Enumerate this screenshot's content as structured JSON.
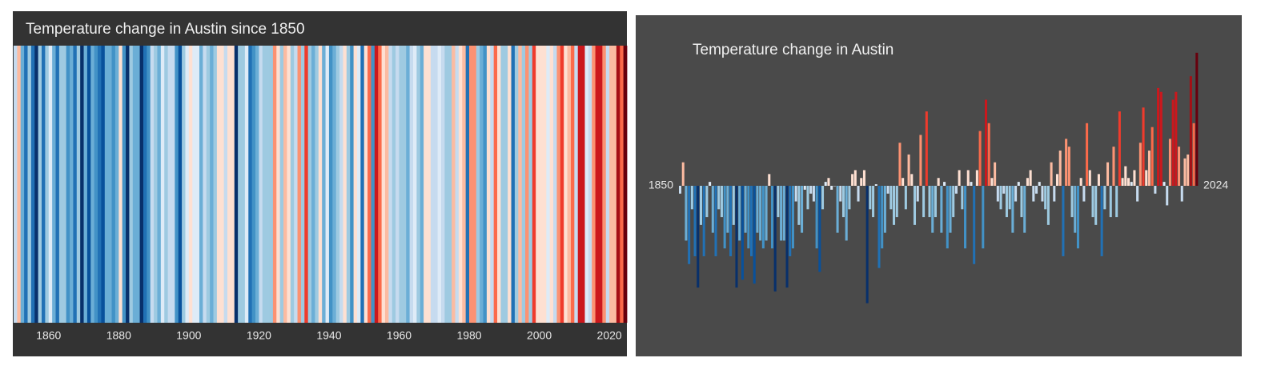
{
  "chart_data": [
    {
      "type": "stripes",
      "title": "Temperature change in Austin since 1850",
      "x": [
        1850,
        1851,
        1852,
        1853,
        1854,
        1855,
        1856,
        1857,
        1858,
        1859,
        1860,
        1861,
        1862,
        1863,
        1864,
        1865,
        1866,
        1867,
        1868,
        1869,
        1870,
        1871,
        1872,
        1873,
        1874,
        1875,
        1876,
        1877,
        1878,
        1879,
        1880,
        1881,
        1882,
        1883,
        1884,
        1885,
        1886,
        1887,
        1888,
        1889,
        1890,
        1891,
        1892,
        1893,
        1894,
        1895,
        1896,
        1897,
        1898,
        1899,
        1900,
        1901,
        1902,
        1903,
        1904,
        1905,
        1906,
        1907,
        1908,
        1909,
        1910,
        1911,
        1912,
        1913,
        1914,
        1915,
        1916,
        1917,
        1918,
        1919,
        1920,
        1921,
        1922,
        1923,
        1924,
        1925,
        1926,
        1927,
        1928,
        1929,
        1930,
        1931,
        1932,
        1933,
        1934,
        1935,
        1936,
        1937,
        1938,
        1939,
        1940,
        1941,
        1942,
        1943,
        1944,
        1945,
        1946,
        1947,
        1948,
        1949,
        1950,
        1951,
        1952,
        1953,
        1954,
        1955,
        1956,
        1957,
        1958,
        1959,
        1960,
        1961,
        1962,
        1963,
        1964,
        1965,
        1966,
        1967,
        1968,
        1969,
        1970,
        1971,
        1972,
        1973,
        1974,
        1975,
        1976,
        1977,
        1978,
        1979,
        1980,
        1981,
        1982,
        1983,
        1984,
        1985,
        1986,
        1987,
        1988,
        1989,
        1990,
        1991,
        1992,
        1993,
        1994,
        1995,
        1996,
        1997,
        1998,
        1999,
        2000,
        2001,
        2002,
        2003,
        2004,
        2005,
        2006,
        2007,
        2008,
        2009,
        2010,
        2011,
        2012,
        2013,
        2014,
        2015,
        2016,
        2017,
        2018,
        2019,
        2020,
        2021,
        2022,
        2023,
        2024
      ],
      "values": [
        -0.1,
        0.3,
        -0.7,
        -1.0,
        -0.3,
        -0.9,
        -1.3,
        -0.5,
        -0.9,
        -0.4,
        0.05,
        -0.6,
        -0.9,
        -0.3,
        -0.4,
        -0.8,
        -0.6,
        -0.9,
        -0.5,
        -1.3,
        -0.7,
        -1.2,
        -0.6,
        -0.8,
        -0.9,
        -1.25,
        -0.6,
        -0.7,
        -0.8,
        -0.7,
        0.15,
        -0.8,
        -1.35,
        -0.4,
        -0.7,
        -0.7,
        -1.3,
        -0.9,
        -0.8,
        -0.2,
        -0.5,
        -0.6,
        -0.05,
        -0.3,
        -0.1,
        -0.2,
        -0.8,
        -1.1,
        -0.3,
        0.05,
        0.1,
        -0.05,
        0.0,
        -0.6,
        -0.2,
        -0.4,
        -0.7,
        -0.3,
        0.15,
        0.2,
        -0.2,
        0.1,
        0.2,
        -1.5,
        -0.3,
        -0.4,
        0.02,
        -1.05,
        -0.8,
        -0.6,
        -0.1,
        -0.3,
        -0.5,
        -0.4,
        0.55,
        0.1,
        -0.3,
        0.4,
        0.15,
        -0.5,
        -0.2,
        0.65,
        -0.4,
        0.95,
        -0.4,
        -0.6,
        -0.4,
        0.1,
        -0.6,
        0.05,
        -0.8,
        -0.6,
        -0.4,
        -0.1,
        0.2,
        -0.3,
        -0.8,
        0.2,
        0.05,
        -1.0,
        0.2,
        0.7,
        -0.8,
        1.1,
        0.8,
        0.1,
        0.3,
        -0.2,
        -0.3,
        -0.1,
        -0.4,
        -0.3,
        -0.6,
        -0.2,
        0.05,
        -0.4,
        -0.6,
        0.1,
        0.2,
        -0.2,
        -0.1,
        0.05,
        -0.2,
        -0.3,
        -0.5,
        0.3,
        -0.2,
        0.15,
        0.45,
        -0.9,
        0.6,
        0.5,
        -0.4,
        -0.6,
        -0.8,
        0.1,
        -0.2,
        0.8,
        0.2,
        -0.4,
        -0.5,
        0.15,
        -0.9,
        -0.3,
        0.3,
        -0.4,
        0.5,
        -0.4,
        0.95,
        0.1,
        0.25,
        0.1,
        0.05,
        0.2,
        -0.2,
        0.55,
        1.0,
        0.2,
        0.45,
        0.75,
        -0.1,
        1.25,
        1.2,
        0.05,
        -0.25,
        0.6,
        1.1,
        1.2,
        0.5,
        -0.2,
        0.35,
        0.4,
        1.4,
        0.8,
        1.7
      ],
      "xlim": [
        1850,
        2025
      ],
      "xticks": [
        1860,
        1880,
        1900,
        1920,
        1940,
        1960,
        1980,
        2000,
        2020
      ],
      "colorscale": [
        "#08306b",
        "#08519c",
        "#2171b5",
        "#4292c6",
        "#6baed6",
        "#9ecae1",
        "#c6dbef",
        "#deebf7",
        "#fee0d2",
        "#fcbba1",
        "#fc9272",
        "#fb6a4a",
        "#ef3b2c",
        "#cb181d",
        "#a50f15",
        "#67000d"
      ],
      "clim": [
        -1.5,
        1.7
      ]
    },
    {
      "type": "bar",
      "title": "Temperature change in Austin",
      "x": [
        1850,
        1851,
        1852,
        1853,
        1854,
        1855,
        1856,
        1857,
        1858,
        1859,
        1860,
        1861,
        1862,
        1863,
        1864,
        1865,
        1866,
        1867,
        1868,
        1869,
        1870,
        1871,
        1872,
        1873,
        1874,
        1875,
        1876,
        1877,
        1878,
        1879,
        1880,
        1881,
        1882,
        1883,
        1884,
        1885,
        1886,
        1887,
        1888,
        1889,
        1890,
        1891,
        1892,
        1893,
        1894,
        1895,
        1896,
        1897,
        1898,
        1899,
        1900,
        1901,
        1902,
        1903,
        1904,
        1905,
        1906,
        1907,
        1908,
        1909,
        1910,
        1911,
        1912,
        1913,
        1914,
        1915,
        1916,
        1917,
        1918,
        1919,
        1920,
        1921,
        1922,
        1923,
        1924,
        1925,
        1926,
        1927,
        1928,
        1929,
        1930,
        1931,
        1932,
        1933,
        1934,
        1935,
        1936,
        1937,
        1938,
        1939,
        1940,
        1941,
        1942,
        1943,
        1944,
        1945,
        1946,
        1947,
        1948,
        1949,
        1950,
        1951,
        1952,
        1953,
        1954,
        1955,
        1956,
        1957,
        1958,
        1959,
        1960,
        1961,
        1962,
        1963,
        1964,
        1965,
        1966,
        1967,
        1968,
        1969,
        1970,
        1971,
        1972,
        1973,
        1974,
        1975,
        1976,
        1977,
        1978,
        1979,
        1980,
        1981,
        1982,
        1983,
        1984,
        1985,
        1986,
        1987,
        1988,
        1989,
        1990,
        1991,
        1992,
        1993,
        1994,
        1995,
        1996,
        1997,
        1998,
        1999,
        2000,
        2001,
        2002,
        2003,
        2004,
        2005,
        2006,
        2007,
        2008,
        2009,
        2010,
        2011,
        2012,
        2013,
        2014,
        2015,
        2016,
        2017,
        2018,
        2019,
        2020,
        2021,
        2022,
        2023,
        2024
      ],
      "values": [
        -0.1,
        0.3,
        -0.7,
        -1.0,
        -0.3,
        -0.9,
        -1.3,
        -0.5,
        -0.9,
        -0.4,
        0.05,
        -0.6,
        -0.9,
        -0.3,
        -0.4,
        -0.8,
        -0.6,
        -0.9,
        -0.5,
        -1.3,
        -0.7,
        -1.2,
        -0.6,
        -0.8,
        -0.9,
        -1.25,
        -0.6,
        -0.7,
        -0.8,
        -0.7,
        0.15,
        -0.8,
        -1.35,
        -0.4,
        -0.7,
        -0.7,
        -1.3,
        -0.9,
        -0.8,
        -0.2,
        -0.5,
        -0.6,
        -0.05,
        -0.3,
        -0.1,
        -0.2,
        -0.8,
        -1.1,
        -0.3,
        0.05,
        0.1,
        -0.05,
        0.0,
        -0.6,
        -0.2,
        -0.4,
        -0.7,
        -0.3,
        0.15,
        0.2,
        -0.2,
        0.1,
        0.2,
        -1.5,
        -0.3,
        -0.4,
        0.02,
        -1.05,
        -0.8,
        -0.6,
        -0.1,
        -0.3,
        -0.5,
        -0.4,
        0.55,
        0.1,
        -0.3,
        0.4,
        0.15,
        -0.5,
        -0.2,
        0.65,
        -0.4,
        0.95,
        -0.4,
        -0.6,
        -0.4,
        0.1,
        -0.6,
        0.05,
        -0.8,
        -0.6,
        -0.4,
        -0.1,
        0.2,
        -0.3,
        -0.8,
        0.2,
        0.05,
        -1.0,
        0.2,
        0.7,
        -0.8,
        1.1,
        0.8,
        0.1,
        0.3,
        -0.2,
        -0.3,
        -0.1,
        -0.4,
        -0.3,
        -0.6,
        -0.2,
        0.05,
        -0.4,
        -0.6,
        0.1,
        0.2,
        -0.2,
        -0.1,
        0.05,
        -0.2,
        -0.3,
        -0.5,
        0.3,
        -0.2,
        0.15,
        0.45,
        -0.9,
        0.6,
        0.5,
        -0.4,
        -0.6,
        -0.8,
        0.1,
        -0.2,
        0.8,
        0.2,
        -0.4,
        -0.5,
        0.15,
        -0.9,
        -0.3,
        0.3,
        -0.4,
        0.5,
        -0.4,
        0.95,
        0.1,
        0.25,
        0.1,
        0.05,
        0.2,
        -0.2,
        0.55,
        1.0,
        0.2,
        0.45,
        0.75,
        -0.1,
        1.25,
        1.2,
        0.05,
        -0.25,
        0.6,
        1.1,
        1.2,
        0.5,
        -0.2,
        0.35,
        0.4,
        1.4,
        0.8,
        1.7
      ],
      "ylim": [
        -2.2,
        2.2
      ],
      "colorscale": [
        "#08306b",
        "#08519c",
        "#2171b5",
        "#4292c6",
        "#6baed6",
        "#9ecae1",
        "#c6dbef",
        "#deebf7",
        "#fee0d2",
        "#fcbba1",
        "#fc9272",
        "#fb6a4a",
        "#ef3b2c",
        "#cb181d",
        "#a50f15",
        "#67000d"
      ],
      "clim": [
        -1.5,
        1.7
      ]
    }
  ]
}
